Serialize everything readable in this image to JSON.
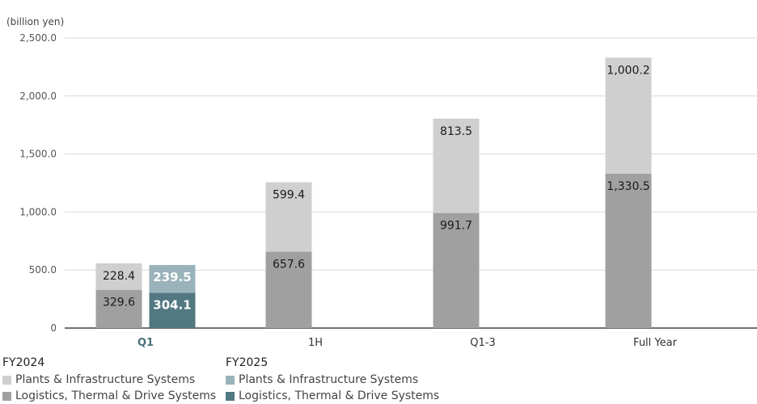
{
  "chart_data": {
    "type": "bar",
    "stacked": true,
    "unit_label": "(billion yen)",
    "categories": [
      "Q1",
      "1H",
      "Q1-3",
      "Full Year"
    ],
    "highlight_category": "Q1",
    "y_ticks": [
      "2,500.0",
      "2,000.0",
      "1,500.0",
      "1,000.0",
      "500.0",
      "0"
    ],
    "ylim": [
      0,
      2500
    ],
    "grid": true,
    "legend_position": "bottom-left",
    "groups": [
      {
        "name": "FY2024",
        "series": [
          {
            "name": "Logistics, Thermal & Drive Systems",
            "color": "#a0a0a0",
            "values": [
              329.6,
              657.6,
              991.7,
              1330.5
            ],
            "labels": [
              "329.6",
              "657.6",
              "991.7",
              "1,330.5"
            ]
          },
          {
            "name": "Plants & Infrastructure Systems",
            "color": "#cfcfcf",
            "values": [
              228.4,
              599.4,
              813.5,
              1000.2
            ],
            "labels": [
              "228.4",
              "599.4",
              "813.5",
              "1,000.2"
            ]
          }
        ]
      },
      {
        "name": "FY2025",
        "series": [
          {
            "name": "Logistics, Thermal & Drive Systems",
            "color": "#527882",
            "values": [
              304.1,
              null,
              null,
              null
            ],
            "labels": [
              "304.1",
              "",
              "",
              ""
            ]
          },
          {
            "name": "Plants & Infrastructure Systems",
            "color": "#9ab3ba",
            "values": [
              239.5,
              null,
              null,
              null
            ],
            "labels": [
              "239.5",
              "",
              "",
              ""
            ]
          }
        ]
      }
    ],
    "colors": {
      "axis": "#444444",
      "grid": "#d9d9d9",
      "highlight_text": "#4a6f79",
      "text": "#333333"
    }
  },
  "legend": {
    "groups": [
      {
        "title": "FY2024",
        "items": [
          {
            "label": "Plants & Infrastructure Systems",
            "color": "#cfcfcf"
          },
          {
            "label": "Logistics, Thermal & Drive Systems",
            "color": "#a0a0a0"
          }
        ]
      },
      {
        "title": "FY2025",
        "items": [
          {
            "label": "Plants & Infrastructure Systems",
            "color": "#9ab3ba"
          },
          {
            "label": "Logistics, Thermal & Drive Systems",
            "color": "#527882"
          }
        ]
      }
    ]
  }
}
